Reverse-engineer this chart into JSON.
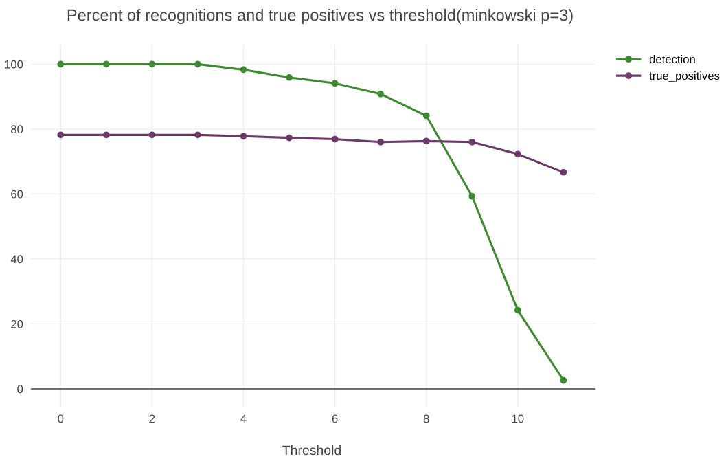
{
  "chart_data": {
    "type": "line",
    "title": "Percent of recognitions and true positives vs threshold(minkowski p=3)",
    "xlabel": "Threshold",
    "x": [
      0,
      1,
      2,
      3,
      4,
      5,
      6,
      7,
      8,
      9,
      10,
      11
    ],
    "series": [
      {
        "name": "detection",
        "color": "#3d8b2f",
        "values": [
          100,
          100,
          100,
          100,
          98.3,
          95.9,
          94.1,
          90.8,
          84.1,
          59.3,
          24.2,
          2.6
        ]
      },
      {
        "name": "true_positives",
        "color": "#6b3a6b",
        "values": [
          78.2,
          78.2,
          78.2,
          78.2,
          77.8,
          77.3,
          76.9,
          76.0,
          76.3,
          76.0,
          72.3,
          66.7
        ]
      }
    ],
    "xlim": [
      -0.65,
      11.7
    ],
    "ylim": [
      -5.5,
      106
    ],
    "xticks": [
      0,
      2,
      4,
      6,
      8,
      10
    ],
    "yticks": [
      0,
      20,
      40,
      60,
      80,
      100
    ],
    "grid": true,
    "legend": "top right",
    "marker": "circle",
    "line_style": "solid"
  }
}
